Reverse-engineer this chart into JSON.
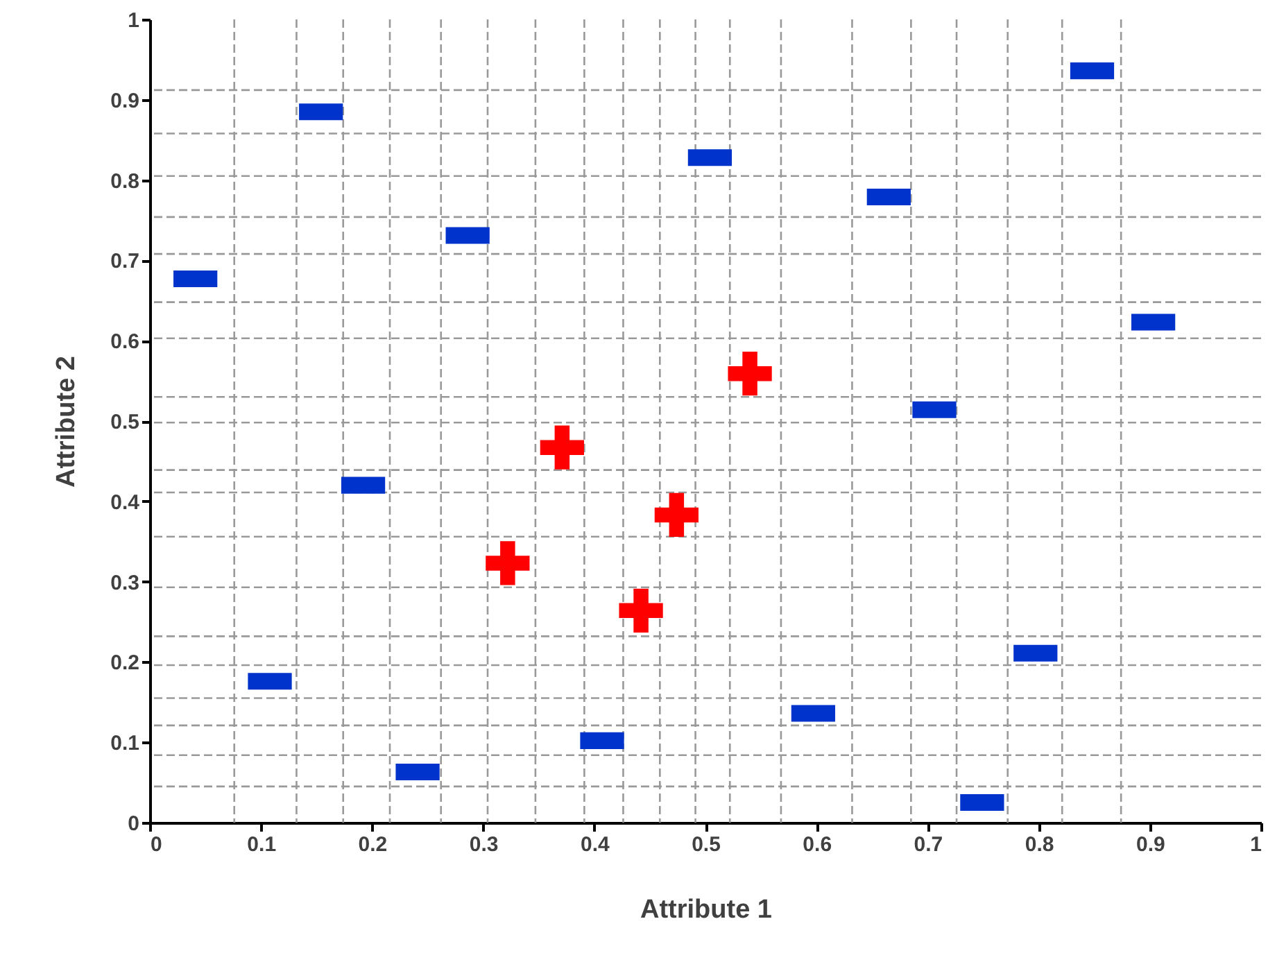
{
  "chart_data": {
    "type": "scatter",
    "xlabel": "Attribute 1",
    "ylabel": "Attribute 2",
    "xlim": [
      0,
      1
    ],
    "ylim": [
      0,
      1
    ],
    "xticks": [
      0,
      0.1,
      0.2,
      0.3,
      0.4,
      0.5,
      0.6,
      0.7,
      0.8,
      0.9,
      1
    ],
    "yticks": [
      0,
      0.1,
      0.2,
      0.3,
      0.4,
      0.5,
      0.6,
      0.7,
      0.8,
      0.9,
      1
    ],
    "grid": false,
    "legend": false,
    "series": [
      {
        "color": "#0033cc",
        "marker": "square",
        "x": [
          0.041,
          0.154,
          0.286,
          0.504,
          0.665,
          0.848,
          0.903,
          0.706,
          0.108,
          0.192,
          0.241,
          0.407,
          0.597,
          0.797,
          0.749
        ],
        "values": [
          0.677,
          0.885,
          0.731,
          0.828,
          0.779,
          0.936,
          0.623,
          0.514,
          0.176,
          0.42,
          0.063,
          0.102,
          0.136,
          0.211,
          0.025
        ]
      },
      {
        "color": "#ff0000",
        "marker": "cross",
        "x": [
          0.371,
          0.474,
          0.322,
          0.442,
          0.54
        ],
        "values": [
          0.467,
          0.383,
          0.323,
          0.264,
          0.559
        ]
      }
    ],
    "ref_lines": [
      {
        "axis": "x",
        "value": 0.076,
        "color": "#999999",
        "line_style": "dashed"
      },
      {
        "axis": "x",
        "value": 0.132,
        "color": "#999999",
        "line_style": "dashed"
      },
      {
        "axis": "x",
        "value": 0.174,
        "color": "#999999",
        "line_style": "dashed"
      },
      {
        "axis": "x",
        "value": 0.216,
        "color": "#999999",
        "line_style": "dashed"
      },
      {
        "axis": "x",
        "value": 0.262,
        "color": "#999999",
        "line_style": "dashed"
      },
      {
        "axis": "x",
        "value": 0.304,
        "color": "#999999",
        "line_style": "dashed"
      },
      {
        "axis": "x",
        "value": 0.347,
        "color": "#999999",
        "line_style": "dashed"
      },
      {
        "axis": "x",
        "value": 0.391,
        "color": "#999999",
        "line_style": "dashed"
      },
      {
        "axis": "x",
        "value": 0.426,
        "color": "#999999",
        "line_style": "dashed"
      },
      {
        "axis": "x",
        "value": 0.459,
        "color": "#999999",
        "line_style": "dashed"
      },
      {
        "axis": "x",
        "value": 0.491,
        "color": "#999999",
        "line_style": "dashed"
      },
      {
        "axis": "x",
        "value": 0.522,
        "color": "#999999",
        "line_style": "dashed"
      },
      {
        "axis": "x",
        "value": 0.568,
        "color": "#999999",
        "line_style": "dashed"
      },
      {
        "axis": "x",
        "value": 0.632,
        "color": "#999999",
        "line_style": "dashed"
      },
      {
        "axis": "x",
        "value": 0.685,
        "color": "#999999",
        "line_style": "dashed"
      },
      {
        "axis": "x",
        "value": 0.726,
        "color": "#999999",
        "line_style": "dashed"
      },
      {
        "axis": "x",
        "value": 0.772,
        "color": "#999999",
        "line_style": "dashed"
      },
      {
        "axis": "x",
        "value": 0.821,
        "color": "#999999",
        "line_style": "dashed"
      },
      {
        "axis": "x",
        "value": 0.874,
        "color": "#999999",
        "line_style": "dashed"
      },
      {
        "axis": "y",
        "value": 0.912,
        "color": "#999999",
        "line_style": "dashed"
      },
      {
        "axis": "y",
        "value": 0.858,
        "color": "#999999",
        "line_style": "dashed"
      },
      {
        "axis": "y",
        "value": 0.805,
        "color": "#999999",
        "line_style": "dashed"
      },
      {
        "axis": "y",
        "value": 0.754,
        "color": "#999999",
        "line_style": "dashed"
      },
      {
        "axis": "y",
        "value": 0.708,
        "color": "#999999",
        "line_style": "dashed"
      },
      {
        "axis": "y",
        "value": 0.648,
        "color": "#999999",
        "line_style": "dashed"
      },
      {
        "axis": "y",
        "value": 0.603,
        "color": "#999999",
        "line_style": "dashed"
      },
      {
        "axis": "y",
        "value": 0.53,
        "color": "#999999",
        "line_style": "dashed"
      },
      {
        "axis": "y",
        "value": 0.498,
        "color": "#999999",
        "line_style": "dashed"
      },
      {
        "axis": "y",
        "value": 0.439,
        "color": "#999999",
        "line_style": "dashed"
      },
      {
        "axis": "y",
        "value": 0.411,
        "color": "#999999",
        "line_style": "dashed"
      },
      {
        "axis": "y",
        "value": 0.356,
        "color": "#999999",
        "line_style": "dashed"
      },
      {
        "axis": "y",
        "value": 0.293,
        "color": "#999999",
        "line_style": "dashed"
      },
      {
        "axis": "y",
        "value": 0.232,
        "color": "#999999",
        "line_style": "dashed"
      },
      {
        "axis": "y",
        "value": 0.196,
        "color": "#999999",
        "line_style": "dashed"
      },
      {
        "axis": "y",
        "value": 0.155,
        "color": "#999999",
        "line_style": "dashed"
      },
      {
        "axis": "y",
        "value": 0.121,
        "color": "#999999",
        "line_style": "dashed"
      },
      {
        "axis": "y",
        "value": 0.084,
        "color": "#999999",
        "line_style": "dashed"
      },
      {
        "axis": "y",
        "value": 0.045,
        "color": "#999999",
        "line_style": "dashed"
      }
    ]
  }
}
